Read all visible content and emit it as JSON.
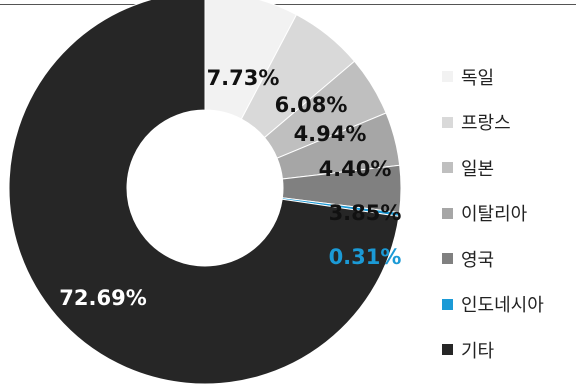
{
  "chart_data": {
    "type": "pie",
    "categories": [
      "독일",
      "프랑스",
      "일본",
      "이탈리아",
      "영국",
      "인도네시아",
      "기타"
    ],
    "values": [
      7.73,
      6.08,
      4.94,
      4.4,
      3.85,
      0.31,
      72.69
    ],
    "labels": [
      "7.73%",
      "6.08%",
      "4.94%",
      "4.40%",
      "3.85%",
      "0.31%",
      "72.69%"
    ],
    "colors": [
      "#f2f2f2",
      "#d9d9d9",
      "#bfbfbf",
      "#a6a6a6",
      "#808080",
      "#1b9ad6",
      "#262626"
    ],
    "label_colors": [
      "#111111",
      "#111111",
      "#111111",
      "#111111",
      "#111111",
      "#1b9ad6",
      "#ffffff"
    ],
    "donut": true,
    "legend_position": "right"
  }
}
